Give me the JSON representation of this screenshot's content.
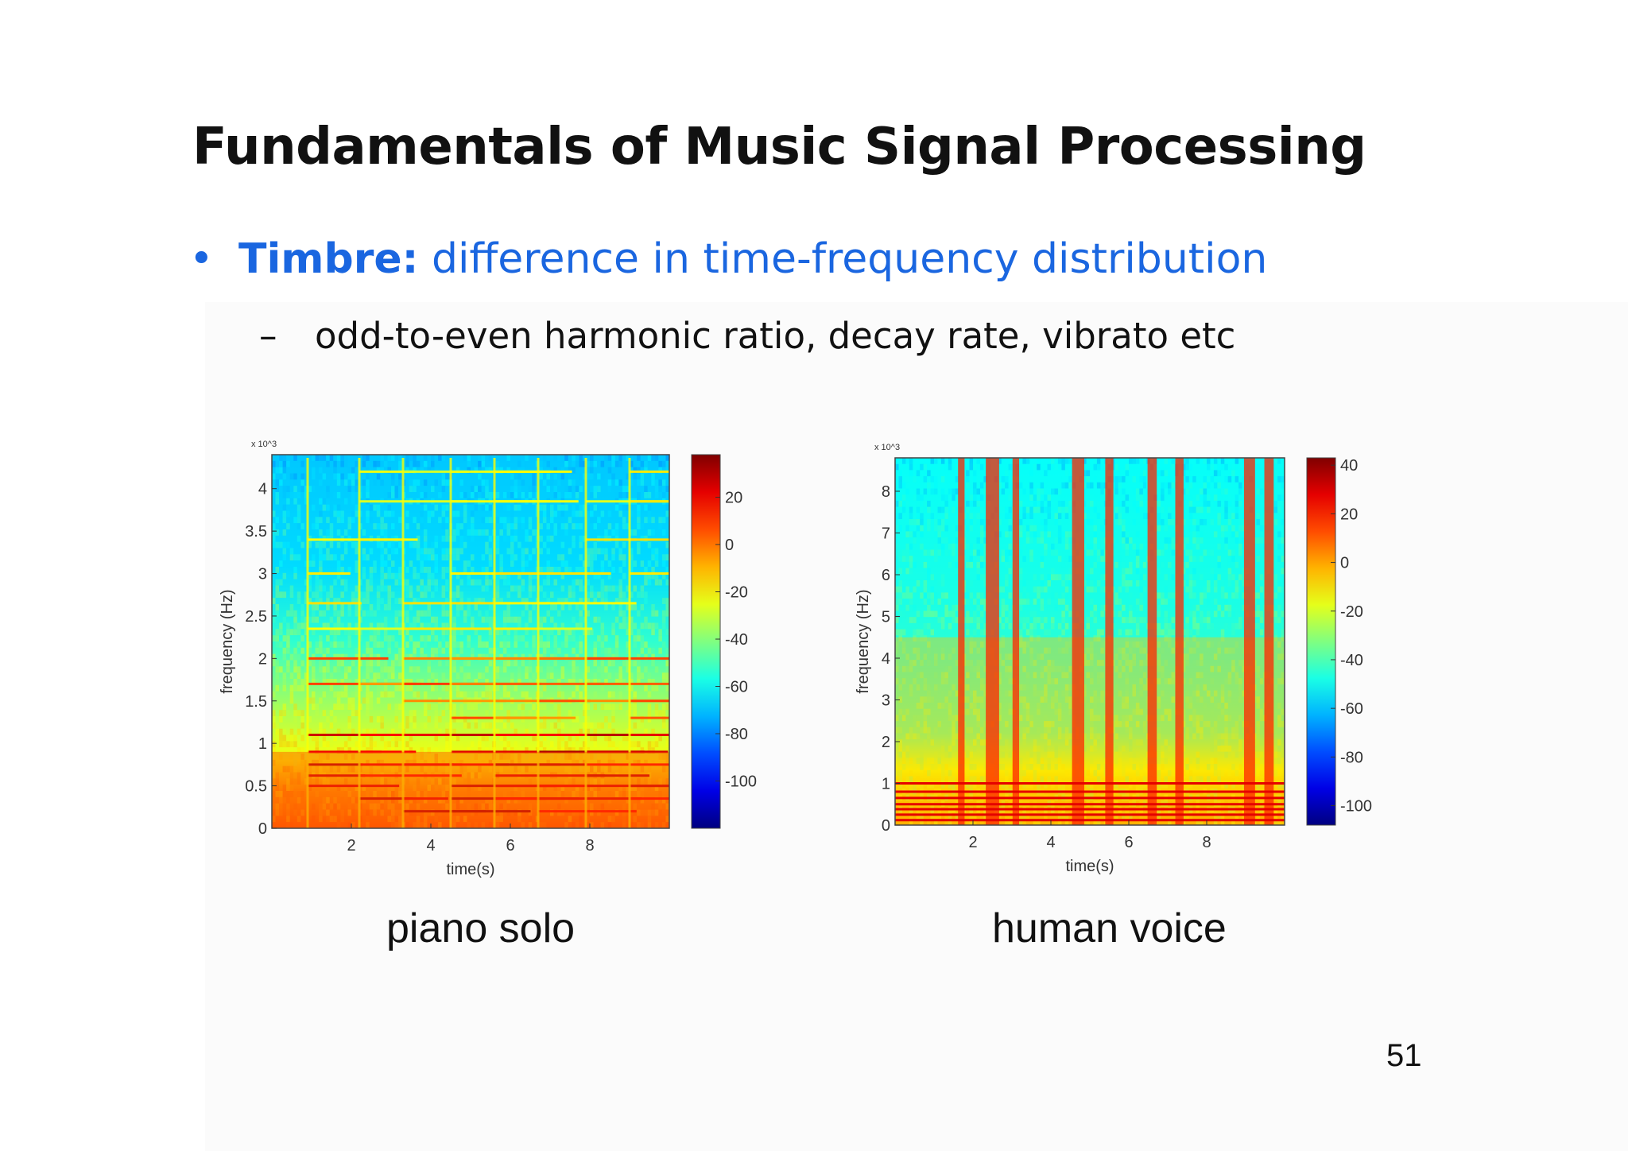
{
  "slide": {
    "title": "Fundamentals of Music Signal Processing",
    "bullet": {
      "marker": "•",
      "term": "Timbre:",
      "text": "difference in time-frequency distribution"
    },
    "sub_bullet": {
      "marker": "–",
      "text": "odd-to-even harmonic ratio, decay rate, vibrato etc"
    },
    "page_number": "51"
  },
  "captions": {
    "left": "piano solo",
    "right": "human voice"
  },
  "colors": {
    "title": "#111111",
    "bullet_text": "#1a66e0",
    "colormap": "jet"
  },
  "chart_data": [
    {
      "type": "heatmap",
      "title": "",
      "xlabel": "time(s)",
      "ylabel": "frequency (Hz)",
      "y_multiplier": "x 10^3",
      "x_ticks": [
        "2",
        "4",
        "6",
        "8"
      ],
      "y_ticks": [
        "0",
        "0.5",
        "1",
        "1.5",
        "2",
        "2.5",
        "3",
        "3.5",
        "4"
      ],
      "xlim": [
        0,
        10
      ],
      "ylim": [
        0,
        4.4
      ],
      "colorbar_ticks": [
        "20",
        "0",
        "-20",
        "-40",
        "-60",
        "-80",
        "-100"
      ],
      "colorbar_range": [
        -120,
        38
      ],
      "note_onsets_s": [
        0.9,
        2.2,
        3.3,
        4.5,
        5.6,
        6.7,
        7.9,
        9.0
      ],
      "partial_freqs_khz": [
        0.2,
        0.35,
        0.5,
        0.62,
        0.75,
        0.9,
        1.1,
        1.3,
        1.5,
        1.7,
        2.0,
        2.35,
        2.65,
        3.0,
        3.4,
        3.85,
        4.2
      ]
    },
    {
      "type": "heatmap",
      "title": "",
      "xlabel": "time(s)",
      "ylabel": "frequency (Hz)",
      "y_multiplier": "x 10^3",
      "x_ticks": [
        "2",
        "4",
        "6",
        "8"
      ],
      "y_ticks": [
        "0",
        "1",
        "2",
        "3",
        "4",
        "5",
        "6",
        "7",
        "8"
      ],
      "xlim": [
        0,
        10
      ],
      "ylim": [
        0,
        8.8
      ],
      "colorbar_ticks": [
        "40",
        "20",
        "0",
        "-20",
        "-40",
        "-60",
        "-80",
        "-100"
      ],
      "colorbar_range": [
        -108,
        43
      ],
      "voiced_onsets_s": [
        1.7,
        2.5,
        3.1,
        4.7,
        5.5,
        6.6,
        7.3,
        9.1,
        9.6
      ],
      "partial_freqs_khz": [
        0.12,
        0.25,
        0.38,
        0.5,
        0.65,
        0.8,
        1.0
      ]
    }
  ]
}
